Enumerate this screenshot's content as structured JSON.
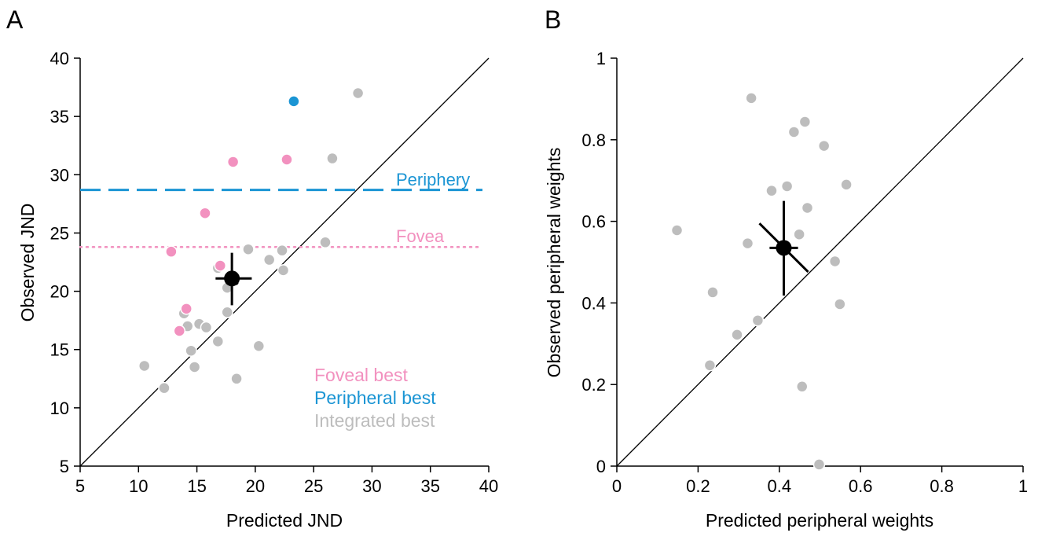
{
  "colors": {
    "foveal": "#f291bf",
    "peripheral": "#1b95d4",
    "integrated": "#bdbdbd",
    "axis": "#000000"
  },
  "chart_data": [
    {
      "panel_label": "A",
      "type": "scatter",
      "xlabel": "Predicted JND",
      "ylabel": "Observed JND",
      "xlim": [
        5,
        40
      ],
      "ylim": [
        5,
        40
      ],
      "xticks": [
        "5",
        "10",
        "15",
        "20",
        "25",
        "30",
        "35",
        "40"
      ],
      "yticks": [
        "5",
        "10",
        "15",
        "20",
        "25",
        "30",
        "35",
        "40"
      ],
      "identity_line": true,
      "reference_lines": [
        {
          "label": "Periphery",
          "y": 28.7,
          "style": "dashed",
          "color": "#1b95d4"
        },
        {
          "label": "Fovea",
          "y": 23.8,
          "style": "dotted",
          "color": "#f291bf"
        }
      ],
      "legend": {
        "placement": "bottom-right",
        "entries": [
          {
            "label": "Foveal best",
            "color": "#f291bf"
          },
          {
            "label": "Peripheral best",
            "color": "#1b95d4"
          },
          {
            "label": "Integrated best",
            "color": "#bdbdbd"
          }
        ]
      },
      "series": [
        {
          "name": "Integrated best",
          "color": "#bdbdbd",
          "points": [
            [
              10.5,
              13.6
            ],
            [
              12.2,
              11.7
            ],
            [
              13.9,
              18.1
            ],
            [
              14.2,
              17.0
            ],
            [
              14.5,
              14.9
            ],
            [
              14.8,
              13.5
            ],
            [
              15.2,
              17.2
            ],
            [
              15.8,
              16.9
            ],
            [
              16.8,
              15.7
            ],
            [
              16.8,
              22.0
            ],
            [
              17.6,
              20.3
            ],
            [
              17.6,
              18.2
            ],
            [
              18.4,
              12.5
            ],
            [
              19.4,
              23.6
            ],
            [
              20.3,
              15.3
            ],
            [
              21.2,
              22.7
            ],
            [
              22.3,
              23.5
            ],
            [
              22.4,
              21.8
            ],
            [
              26.0,
              24.2
            ],
            [
              26.6,
              31.4
            ],
            [
              28.8,
              37.0
            ]
          ]
        },
        {
          "name": "Foveal best",
          "color": "#f291bf",
          "points": [
            [
              12.8,
              23.4
            ],
            [
              13.5,
              16.6
            ],
            [
              14.1,
              18.5
            ],
            [
              15.7,
              26.7
            ],
            [
              17.0,
              22.2
            ],
            [
              18.1,
              31.1
            ],
            [
              22.7,
              31.3
            ]
          ]
        },
        {
          "name": "Peripheral best",
          "color": "#1b95d4",
          "points": [
            [
              23.3,
              36.3
            ]
          ]
        }
      ],
      "mean": {
        "x": 18.0,
        "y": 21.1,
        "x_error": [
          16.6,
          19.7
        ],
        "y_error": [
          18.8,
          23.3
        ],
        "oblique_error": [
          [
            17.6,
            21.5
          ],
          [
            18.5,
            20.6
          ]
        ]
      }
    },
    {
      "panel_label": "B",
      "type": "scatter",
      "xlabel": "Predicted peripheral weights",
      "ylabel": "Observed peripheral weights",
      "xlim": [
        0,
        1
      ],
      "ylim": [
        0,
        1
      ],
      "xticks": [
        "0",
        "0.2",
        "0.4",
        "0.6",
        "0.8",
        "1"
      ],
      "yticks": [
        "0",
        "0.2",
        "0.4",
        "0.6",
        "0.8",
        "1"
      ],
      "identity_line": true,
      "series": [
        {
          "name": "Integrated best",
          "color": "#bdbdbd",
          "points": [
            [
              0.148,
              0.578
            ],
            [
              0.229,
              0.247
            ],
            [
              0.236,
              0.426
            ],
            [
              0.296,
              0.322
            ],
            [
              0.322,
              0.546
            ],
            [
              0.331,
              0.902
            ],
            [
              0.347,
              0.357
            ],
            [
              0.381,
              0.675
            ],
            [
              0.419,
              0.686
            ],
            [
              0.436,
              0.819
            ],
            [
              0.449,
              0.568
            ],
            [
              0.456,
              0.195
            ],
            [
              0.463,
              0.844
            ],
            [
              0.469,
              0.633
            ],
            [
              0.498,
              0.004
            ],
            [
              0.51,
              0.785
            ],
            [
              0.537,
              0.502
            ],
            [
              0.549,
              0.397
            ],
            [
              0.565,
              0.69
            ]
          ]
        }
      ],
      "mean": {
        "x": 0.411,
        "y": 0.535,
        "x_error": [
          0.376,
          0.446
        ],
        "y_error": [
          0.418,
          0.65
        ],
        "oblique_error": [
          [
            0.351,
            0.595
          ],
          [
            0.471,
            0.476
          ]
        ]
      }
    }
  ]
}
